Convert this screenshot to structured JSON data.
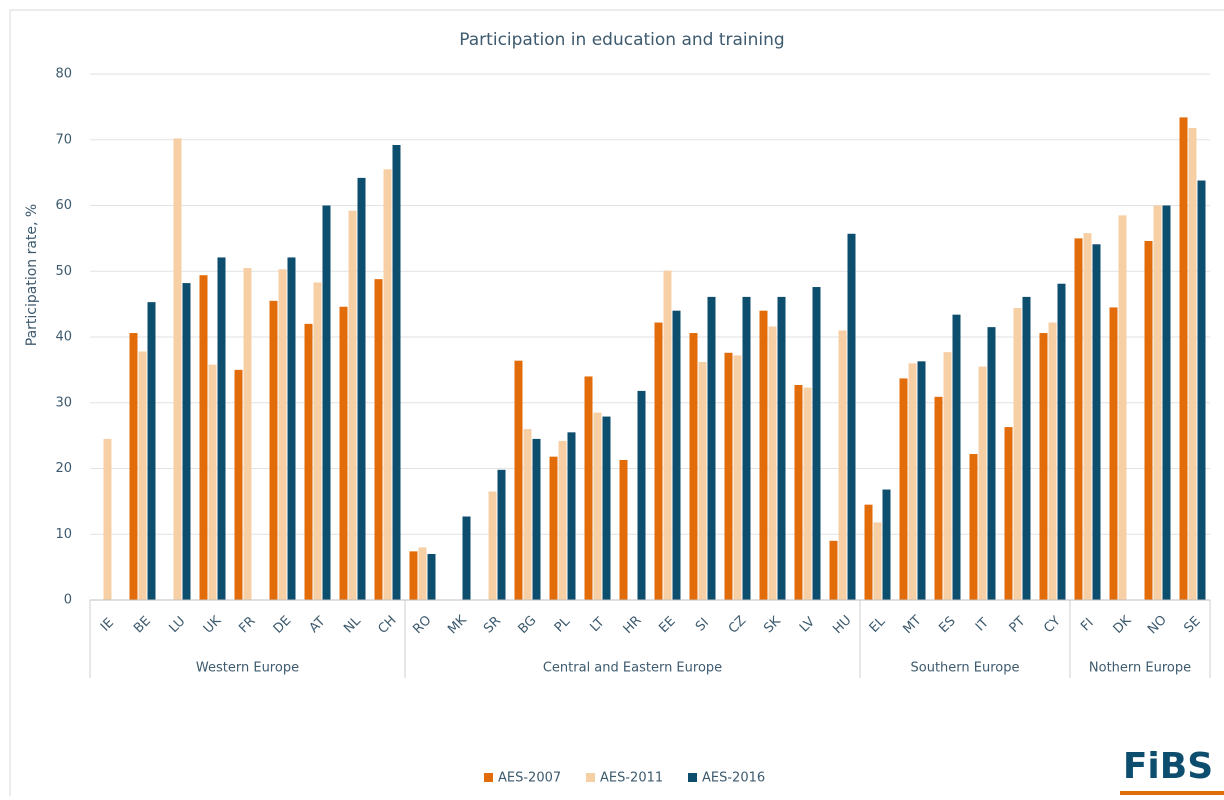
{
  "chart_data": {
    "type": "bar",
    "title": "Participation in education and training",
    "y_label": "Participation rate, %",
    "groups": [
      {
        "name": "Western Europe",
        "categories": [
          "IE",
          "BE",
          "LU",
          "UK",
          "FR",
          "DE",
          "AT",
          "NL",
          "CH"
        ]
      },
      {
        "name": "Central and Eastern Europe",
        "categories": [
          "RO",
          "MK",
          "SR",
          "BG",
          "PL",
          "LT",
          "HR",
          "EE",
          "SI",
          "CZ",
          "SK",
          "LV",
          "HU"
        ]
      },
      {
        "name": "Southern Europe",
        "categories": [
          "EL",
          "MT",
          "ES",
          "IT",
          "PT",
          "CY"
        ]
      },
      {
        "name": "Nothern Europe",
        "categories": [
          "FI",
          "DK",
          "NO",
          "SE"
        ]
      }
    ],
    "series": [
      {
        "name": "AES-2007",
        "color": "#e26b0a",
        "values": [
          null,
          40.6,
          null,
          49.4,
          35,
          45.5,
          42,
          44.6,
          48.8,
          7.4,
          null,
          null,
          36.4,
          21.8,
          34,
          21.3,
          42.2,
          40.6,
          37.6,
          44,
          32.7,
          9,
          14.5,
          33.7,
          30.9,
          22.2,
          26.3,
          40.6,
          55,
          44.5,
          54.6,
          73.4
        ]
      },
      {
        "name": "AES-2011",
        "color": "#f7cfa5",
        "values": [
          24.5,
          37.8,
          70.2,
          35.8,
          50.5,
          50.3,
          48.3,
          59.2,
          65.5,
          8,
          null,
          16.5,
          26,
          24.2,
          28.5,
          null,
          50.1,
          36.2,
          37.2,
          41.6,
          32.3,
          41,
          11.8,
          36,
          37.7,
          35.5,
          44.4,
          42.2,
          55.8,
          58.5,
          60,
          71.8
        ]
      },
      {
        "name": "AES-2016",
        "color": "#0d4d6e",
        "values": [
          null,
          45.3,
          48.2,
          52.1,
          null,
          52.1,
          60,
          64.2,
          69.2,
          7,
          12.7,
          19.8,
          24.5,
          25.5,
          27.9,
          31.8,
          44,
          46.1,
          46.1,
          46.1,
          47.6,
          55.7,
          16.8,
          36.3,
          43.4,
          41.5,
          46.1,
          48.1,
          54.1,
          null,
          60,
          63.8
        ]
      }
    ],
    "ylim": [
      0,
      80
    ],
    "yticks": [
      0,
      10,
      20,
      30,
      40,
      50,
      60,
      70,
      80
    ],
    "grid": true
  },
  "logo": "FiBS"
}
